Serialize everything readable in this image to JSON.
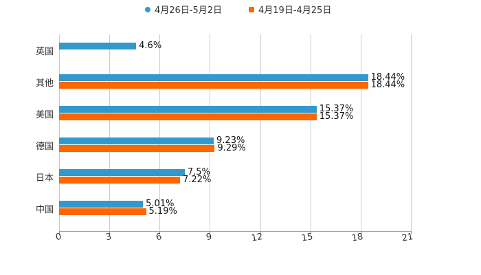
{
  "chart_data": {
    "type": "bar",
    "orientation": "horizontal",
    "title": "",
    "xlabel": "",
    "ylabel": "",
    "xlim": [
      0,
      21
    ],
    "x_ticks": [
      "0",
      "3",
      "6",
      "9",
      "12",
      "15",
      "18",
      "21"
    ],
    "grid": true,
    "legend_position": "top",
    "categories": [
      "英国",
      "其他",
      "美国",
      "德国",
      "日本",
      "中国"
    ],
    "series": [
      {
        "name": "4月26日-5月2日",
        "color": "#3399cc",
        "values": [
          4.6,
          18.44,
          15.37,
          9.23,
          7.5,
          5.01
        ],
        "labels": [
          "4.6%",
          "18.44%",
          "15.37%",
          "9.23%",
          "7.5%",
          "5.01%"
        ]
      },
      {
        "name": "4月19日-4月25日",
        "color": "#ff6600",
        "values": [
          null,
          18.44,
          15.37,
          9.29,
          7.22,
          5.19
        ],
        "labels": [
          null,
          "18.44%",
          "15.37%",
          "9.29%",
          "7.22%",
          "5.19%"
        ]
      }
    ]
  },
  "legend": {
    "items": [
      {
        "label": "4月26日-5月2日",
        "color": "#3399cc"
      },
      {
        "label": "4月19日-4月25日",
        "color": "#ff6600"
      }
    ]
  }
}
